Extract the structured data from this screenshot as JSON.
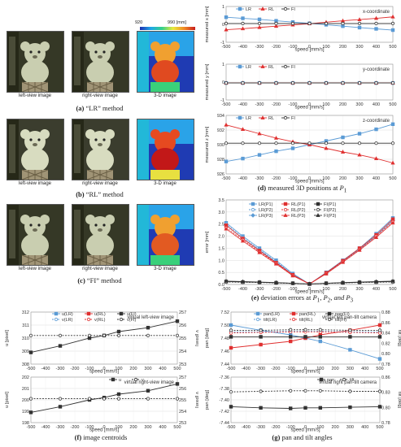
{
  "left": {
    "colorbar": {
      "min": "920",
      "max": "990 [mm]"
    },
    "image_labels": [
      "left-view image",
      "right-view image",
      "3-D image"
    ],
    "methods": [
      {
        "tag": "(a)",
        "text": "“LR” method"
      },
      {
        "tag": "(b)",
        "text": "“RL” method"
      },
      {
        "tag": "(c)",
        "text": "“FI” method"
      }
    ]
  },
  "panel_d": {
    "tag": "(d)",
    "caption": "measured 3D positions at ",
    "caption_var": "P",
    "caption_sub": "1",
    "xlabel": "speed [mm/s]",
    "ylabels": [
      "measured x [mm]",
      "measured y [mm]",
      "measured z [mm]"
    ],
    "titles": [
      "x-coordinate",
      "y-coordinate",
      "z-coordinate"
    ],
    "legend": [
      "LR",
      "RL",
      "FI"
    ]
  },
  "panel_e": {
    "tag": "(e)",
    "caption": "deviation errors at ",
    "caption_points": [
      "P",
      "1",
      ", P",
      "2",
      ", and P",
      "3"
    ],
    "ylabel": "error [mm]",
    "xlabel": "speed [mm/s]",
    "legend": [
      "LR(P1)",
      "RL(P1)",
      "FI(P1)",
      "LR(P2)",
      "RL(P2)",
      "FI(P2)",
      "LR(P3)",
      "RL(P3)",
      "FI(P3)"
    ]
  },
  "panel_f": {
    "tag": "(f)",
    "caption": "image centroids",
    "top_legend": [
      "u(LR)",
      "u(RL)",
      "u(FI)",
      "v(LR)",
      "v(RL)",
      "v(FI)"
    ],
    "bottom_legend": [
      "u",
      "v"
    ],
    "ylabel_left": "u [pixel]",
    "ylabel_right": "v [pixel]",
    "xlabel": "speed [mm/s]",
    "top_title": "virtual left-view image",
    "bottom_title": "virtual right-view image"
  },
  "panel_g": {
    "tag": "(g)",
    "caption": "pan and tilt angles",
    "top_legend": [
      "pan(LR)",
      "pan(RL)",
      "pan(FI)",
      "tilt(LR)",
      "tilt(RL)",
      "tilt(FI)"
    ],
    "bottom_legend": [
      "pan",
      "tilt"
    ],
    "ylabel_left": "pan [deg]",
    "ylabel_right": "tilt [deg]",
    "xlabel": "speed [mm/s]",
    "top_title": "virtual left pan-tilt camera",
    "bottom_title": "virtual right pan-tilt camera"
  },
  "chart_data": [
    {
      "type": "line",
      "id": "d_x",
      "x": [
        -500,
        -400,
        -300,
        -200,
        -100,
        0,
        100,
        200,
        300,
        400,
        500
      ],
      "ylim": [
        -1,
        1
      ],
      "yticks": [
        "1",
        "0",
        "-1"
      ],
      "series": [
        {
          "name": "LR",
          "color": "#5b9bd5",
          "marker": "square",
          "values": [
            0.4,
            0.34,
            0.28,
            0.2,
            0.13,
            0.06,
            -0.02,
            -0.1,
            -0.18,
            -0.25,
            -0.32
          ]
        },
        {
          "name": "RL",
          "color": "#e03030",
          "marker": "triangle",
          "values": [
            -0.3,
            -0.24,
            -0.17,
            -0.1,
            -0.03,
            0.04,
            0.12,
            0.2,
            0.27,
            0.34,
            0.42
          ]
        },
        {
          "name": "FI",
          "color": "#333333",
          "marker": "circle",
          "values": [
            0.05,
            0.05,
            0.05,
            0.05,
            0.05,
            0.05,
            0.05,
            0.05,
            0.05,
            0.05,
            0.05
          ]
        }
      ]
    },
    {
      "type": "line",
      "id": "d_y",
      "x": [
        -500,
        -400,
        -300,
        -200,
        -100,
        0,
        100,
        200,
        300,
        400,
        500
      ],
      "ylim": [
        -1,
        1
      ],
      "yticks": [
        "1",
        "0",
        "-1"
      ],
      "series": [
        {
          "name": "LR",
          "color": "#5b9bd5",
          "marker": "square",
          "values": [
            -0.05,
            -0.05,
            -0.05,
            -0.05,
            -0.05,
            -0.05,
            -0.05,
            -0.05,
            -0.05,
            -0.05,
            -0.05
          ]
        },
        {
          "name": "RL",
          "color": "#e03030",
          "marker": "triangle",
          "values": [
            -0.05,
            -0.05,
            -0.05,
            -0.05,
            -0.05,
            -0.05,
            -0.05,
            -0.05,
            -0.05,
            -0.05,
            -0.05
          ]
        },
        {
          "name": "FI",
          "color": "#333333",
          "marker": "circle",
          "values": [
            -0.05,
            -0.05,
            -0.05,
            -0.05,
            -0.05,
            -0.05,
            -0.05,
            -0.05,
            -0.05,
            -0.05,
            -0.05
          ]
        }
      ]
    },
    {
      "type": "line",
      "id": "d_z",
      "x": [
        -500,
        -400,
        -300,
        -200,
        -100,
        0,
        100,
        200,
        300,
        400,
        500
      ],
      "ylim": [
        926,
        934
      ],
      "yticks": [
        "934",
        "932",
        "930",
        "928",
        "926"
      ],
      "series": [
        {
          "name": "LR",
          "color": "#5b9bd5",
          "marker": "square",
          "values": [
            927.7,
            928.1,
            928.6,
            929.1,
            929.5,
            930.0,
            930.5,
            931.0,
            931.5,
            932.1,
            932.8
          ]
        },
        {
          "name": "RL",
          "color": "#e03030",
          "marker": "triangle",
          "values": [
            932.7,
            932.1,
            931.5,
            930.9,
            930.4,
            930.0,
            929.5,
            929.0,
            928.6,
            928.1,
            927.5
          ]
        },
        {
          "name": "FI",
          "color": "#333333",
          "marker": "circle",
          "values": [
            930.2,
            930.2,
            930.2,
            930.2,
            930.2,
            930.2,
            930.2,
            930.2,
            930.2,
            930.2,
            930.2
          ]
        }
      ]
    },
    {
      "type": "line",
      "id": "e",
      "x": [
        -500,
        -400,
        -300,
        -200,
        -100,
        0,
        100,
        200,
        300,
        400,
        500
      ],
      "ylim": [
        0,
        3.5
      ],
      "yticks": [
        "3.5",
        "3.0",
        "2.5",
        "2.0",
        "1.5",
        "1.0",
        "0.5",
        "0.0"
      ],
      "series": [
        {
          "name": "LR(P1)",
          "color": "#5b9bd5",
          "dash": false,
          "marker": "square",
          "values": [
            2.55,
            2.0,
            1.5,
            1.0,
            0.45,
            0.02,
            0.5,
            1.0,
            1.5,
            2.1,
            2.75
          ]
        },
        {
          "name": "LR(P2)",
          "color": "#5b9bd5",
          "dash": true,
          "marker": "circle",
          "values": [
            2.5,
            1.95,
            1.45,
            0.95,
            0.42,
            0.02,
            0.48,
            0.98,
            1.48,
            2.05,
            2.7
          ]
        },
        {
          "name": "LR(P3)",
          "color": "#5b9bd5",
          "dash": false,
          "marker": "diamond",
          "values": [
            2.45,
            1.9,
            1.42,
            0.92,
            0.4,
            0.02,
            0.46,
            0.96,
            1.46,
            2.0,
            2.65
          ]
        },
        {
          "name": "RL(P1)",
          "color": "#e03030",
          "dash": false,
          "marker": "square",
          "values": [
            2.45,
            1.9,
            1.4,
            0.9,
            0.4,
            0.02,
            0.48,
            0.98,
            1.5,
            2.05,
            2.7
          ]
        },
        {
          "name": "RL(P2)",
          "color": "#e03030",
          "dash": true,
          "marker": "circle",
          "values": [
            2.35,
            1.85,
            1.35,
            0.88,
            0.38,
            0.02,
            0.46,
            0.95,
            1.45,
            2.0,
            2.6
          ]
        },
        {
          "name": "RL(P3)",
          "color": "#e03030",
          "dash": false,
          "marker": "triangle",
          "values": [
            2.3,
            1.8,
            1.32,
            0.85,
            0.36,
            0.02,
            0.44,
            0.92,
            1.42,
            1.95,
            2.55
          ]
        },
        {
          "name": "FI(P1)",
          "color": "#333333",
          "dash": false,
          "marker": "square",
          "values": [
            0.12,
            0.1,
            0.09,
            0.07,
            0.05,
            0.02,
            0.05,
            0.07,
            0.09,
            0.1,
            0.12
          ]
        },
        {
          "name": "FI(P2)",
          "color": "#333333",
          "dash": true,
          "marker": "circle",
          "values": [
            0.1,
            0.09,
            0.08,
            0.06,
            0.04,
            0.02,
            0.04,
            0.06,
            0.08,
            0.09,
            0.1
          ]
        },
        {
          "name": "FI(P3)",
          "color": "#333333",
          "dash": false,
          "marker": "triangle",
          "values": [
            0.14,
            0.12,
            0.1,
            0.08,
            0.05,
            0.02,
            0.05,
            0.08,
            0.1,
            0.12,
            0.14
          ]
        }
      ]
    },
    {
      "type": "line",
      "id": "f_top",
      "x": [
        -500,
        -300,
        -100,
        0,
        100,
        300,
        500
      ],
      "ylim": [
        308,
        312
      ],
      "yticks": [
        "312",
        "311",
        "310",
        "309",
        "308"
      ],
      "y2lim": [
        253,
        257
      ],
      "y2ticks": [
        "257",
        "256",
        "255",
        "254",
        "253"
      ],
      "series": [
        {
          "name": "u(FI)",
          "axis": "left",
          "color": "#333333",
          "dash": false,
          "marker": "square",
          "values": [
            308.9,
            309.4,
            310.0,
            310.2,
            310.5,
            310.8,
            311.3
          ]
        },
        {
          "name": "v(FI)",
          "axis": "right",
          "color": "#333333",
          "dash": true,
          "marker": "circle",
          "values": [
            255.2,
            255.2,
            255.2,
            255.2,
            255.2,
            255.2,
            255.2
          ]
        }
      ]
    },
    {
      "type": "line",
      "id": "f_bottom",
      "x": [
        -500,
        -300,
        -100,
        0,
        100,
        300,
        500
      ],
      "ylim": [
        198,
        202
      ],
      "yticks": [
        "202",
        "201",
        "200",
        "199",
        "198"
      ],
      "y2lim": [
        253,
        257
      ],
      "y2ticks": [
        "257",
        "256",
        "255",
        "254",
        "253"
      ],
      "series": [
        {
          "name": "u",
          "axis": "left",
          "color": "#333333",
          "dash": false,
          "marker": "square",
          "values": [
            198.9,
            199.4,
            200.0,
            200.2,
            200.5,
            200.8,
            201.4
          ]
        },
        {
          "name": "v",
          "axis": "right",
          "color": "#333333",
          "dash": true,
          "marker": "circle",
          "values": [
            255.1,
            255.1,
            255.1,
            255.1,
            255.1,
            255.1,
            255.1
          ]
        }
      ]
    },
    {
      "type": "line",
      "id": "g_top",
      "x": [
        -500,
        -300,
        -100,
        0,
        100,
        300,
        500
      ],
      "ylim": [
        7.44,
        7.52
      ],
      "yticks": [
        "7.52",
        "7.50",
        "7.48",
        "7.46",
        "7.44"
      ],
      "y2lim": [
        0.78,
        0.88
      ],
      "y2ticks": [
        "0.88",
        "0.86",
        "0.84",
        "0.82",
        "0.80",
        "0.78"
      ],
      "series": [
        {
          "name": "pan(LR)",
          "axis": "left",
          "color": "#5b9bd5",
          "dash": false,
          "marker": "square",
          "values": [
            7.5,
            7.492,
            7.485,
            7.48,
            7.475,
            7.462,
            7.448
          ]
        },
        {
          "name": "pan(RL)",
          "axis": "left",
          "color": "#e03030",
          "dash": false,
          "marker": "square",
          "values": [
            7.465,
            7.47,
            7.475,
            7.48,
            7.485,
            7.492,
            7.5
          ]
        },
        {
          "name": "pan(FI)",
          "axis": "left",
          "color": "#333333",
          "dash": false,
          "marker": "square",
          "values": [
            7.482,
            7.482,
            7.482,
            7.482,
            7.482,
            7.482,
            7.482
          ]
        },
        {
          "name": "tilt(LR)",
          "axis": "right",
          "color": "#5b9bd5",
          "dash": true,
          "marker": "circle",
          "values": [
            0.842,
            0.842,
            0.843,
            0.843,
            0.843,
            0.842,
            0.842
          ]
        },
        {
          "name": "tilt(RL)",
          "axis": "right",
          "color": "#e03030",
          "dash": true,
          "marker": "circle",
          "values": [
            0.84,
            0.841,
            0.842,
            0.842,
            0.842,
            0.841,
            0.84
          ]
        },
        {
          "name": "tilt(FI)",
          "axis": "right",
          "color": "#333333",
          "dash": true,
          "marker": "circle",
          "values": [
            0.845,
            0.845,
            0.846,
            0.846,
            0.846,
            0.845,
            0.845
          ]
        }
      ]
    },
    {
      "type": "line",
      "id": "g_bottom",
      "x": [
        -500,
        -300,
        -100,
        0,
        100,
        300,
        500
      ],
      "ylim": [
        -7.44,
        -7.36
      ],
      "yticks": [
        "-7.36",
        "-7.38",
        "-7.40",
        "-7.42",
        "-7.44"
      ],
      "y2lim": [
        0.78,
        0.86
      ],
      "y2ticks": [
        "0.86",
        "0.83",
        "0.80",
        "0.78"
      ],
      "series": [
        {
          "name": "pan",
          "axis": "left",
          "color": "#333333",
          "dash": false,
          "marker": "square",
          "values": [
            -7.412,
            -7.414,
            -7.415,
            -7.414,
            -7.414,
            -7.413,
            -7.412
          ]
        },
        {
          "name": "tilt",
          "axis": "right",
          "color": "#333333",
          "dash": true,
          "marker": "circle",
          "values": [
            0.834,
            0.835,
            0.836,
            0.836,
            0.836,
            0.835,
            0.835
          ]
        }
      ]
    }
  ]
}
